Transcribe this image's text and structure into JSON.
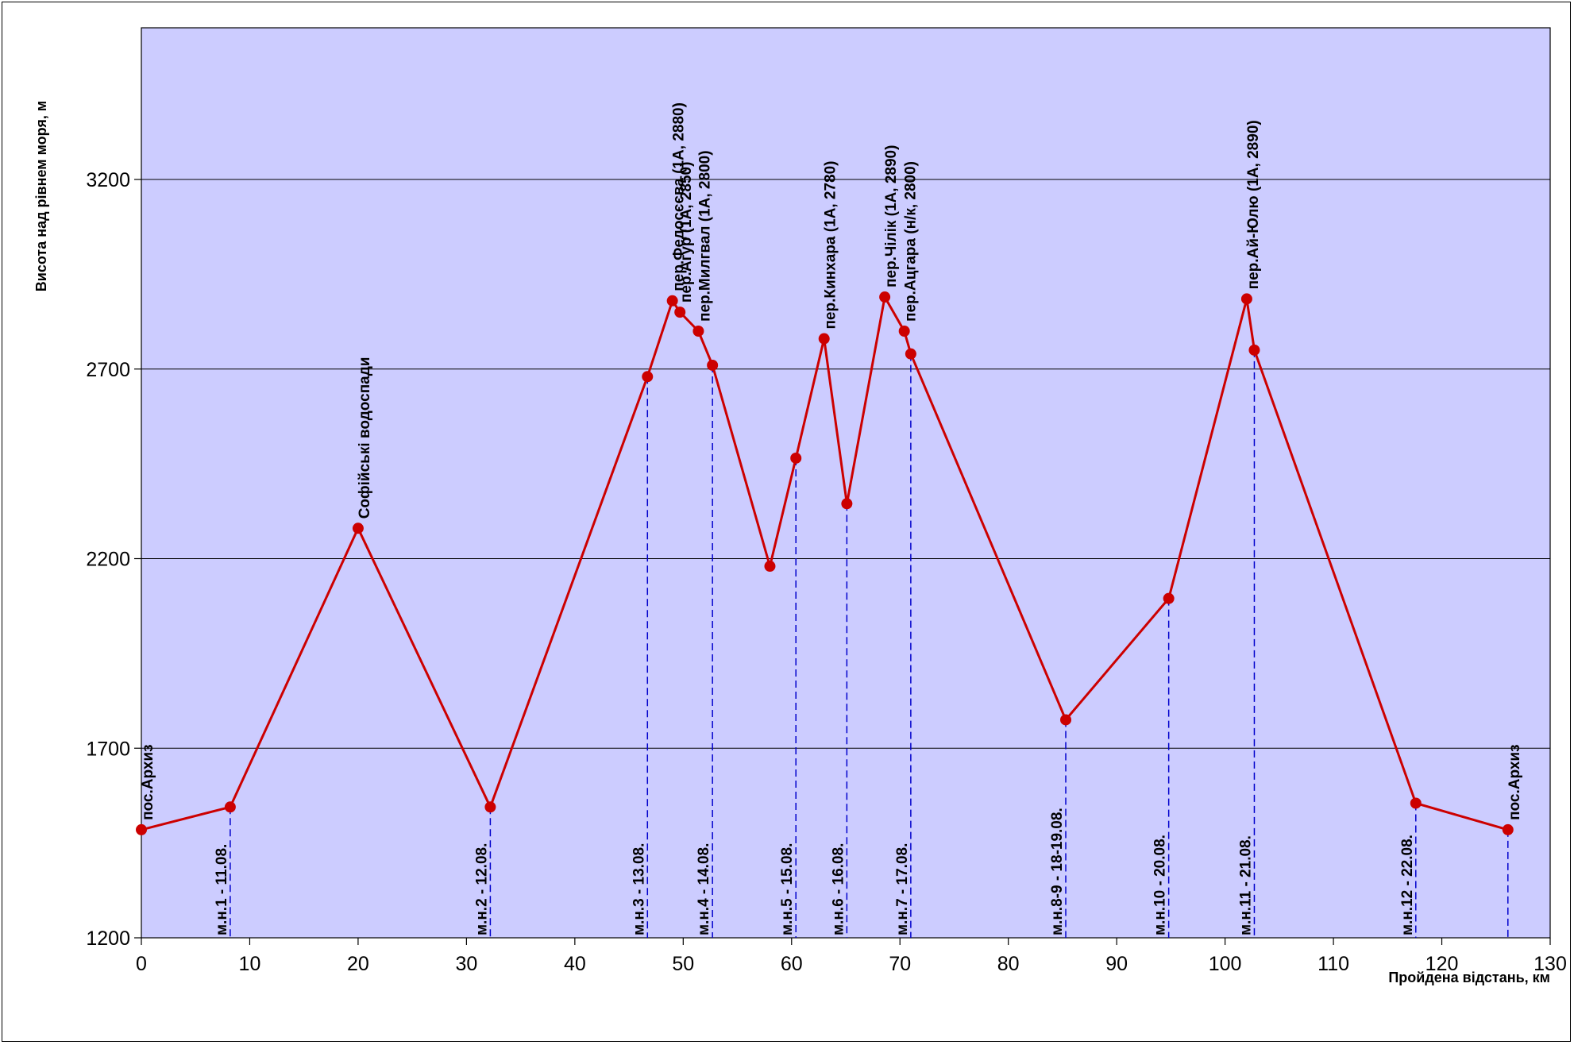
{
  "chart_data": {
    "type": "line",
    "title": "",
    "xlabel": "Пройдена відстань, км",
    "ylabel": "Висота над рівнем моря, м",
    "xlim": [
      0,
      130
    ],
    "ylim": [
      1200,
      3600
    ],
    "x_ticks": [
      0,
      10,
      20,
      30,
      40,
      50,
      60,
      70,
      80,
      90,
      100,
      110,
      120,
      130
    ],
    "y_ticks": [
      1200,
      1700,
      2200,
      2700,
      3200
    ],
    "grid": "horizontal",
    "colors": {
      "plot_bg": "#ccccff",
      "line": "#cc0000",
      "marker": "#cc0000",
      "drop_line": "#0000cc"
    },
    "series": [
      {
        "x": [
          0,
          8.2,
          20,
          32.2,
          46.7,
          49,
          49.7,
          51.4,
          52.7,
          58,
          60.4,
          63,
          65.1,
          68.6,
          70.4,
          71,
          85.3,
          94.8,
          102,
          102.7,
          117.6,
          126.1
        ],
        "y": [
          1485,
          1545,
          2280,
          1545,
          2680,
          2880,
          2850,
          2800,
          2710,
          2180,
          2465,
          2780,
          2345,
          2890,
          2800,
          2740,
          1775,
          2095,
          2885,
          2750,
          1555,
          1485
        ]
      }
    ],
    "point_labels": [
      {
        "x": 0,
        "y": 1485,
        "text": "пос.Архиз"
      },
      {
        "x": 20,
        "y": 2280,
        "text": "Софійські водоспади"
      },
      {
        "x": 49,
        "y": 2880,
        "text": "пер.Федосєєва (1А, 2880)"
      },
      {
        "x": 49.7,
        "y": 2850,
        "text": "пер.Агур (1А, 2850)"
      },
      {
        "x": 51.4,
        "y": 2800,
        "text": "пер.Милгвал (1А, 2800)"
      },
      {
        "x": 63,
        "y": 2780,
        "text": "пер.Кинхара (1А, 2780)"
      },
      {
        "x": 68.6,
        "y": 2890,
        "text": "пер.Чілік (1А, 2890)"
      },
      {
        "x": 70.4,
        "y": 2800,
        "text": "пер.Ацгара (н/к, 2800)"
      },
      {
        "x": 102,
        "y": 2885,
        "text": "пер.Ай-Юлю (1А, 2890)"
      },
      {
        "x": 126.1,
        "y": 1485,
        "text": "пос.Архиз"
      }
    ],
    "camps": [
      {
        "x": 8.2,
        "top": 1545,
        "text": "м.н.1 - 11.08."
      },
      {
        "x": 32.2,
        "top": 1545,
        "text": "м.н.2 - 12.08."
      },
      {
        "x": 46.7,
        "top": 2680,
        "text": "м.н.3 - 13.08."
      },
      {
        "x": 52.7,
        "top": 2710,
        "text": "м.н.4 - 14.08."
      },
      {
        "x": 60.4,
        "top": 2465,
        "text": "м.н.5 - 15.08."
      },
      {
        "x": 65.1,
        "top": 2345,
        "text": "м.н.6 - 16.08."
      },
      {
        "x": 71,
        "top": 2740,
        "text": "м.н.7 - 17.08."
      },
      {
        "x": 85.3,
        "top": 1775,
        "text": "м.н.8-9 - 18-19.08."
      },
      {
        "x": 94.8,
        "top": 2095,
        "text": "м.н.10 - 20.08."
      },
      {
        "x": 102.7,
        "top": 2750,
        "text": "м.н.11 - 21.08."
      },
      {
        "x": 117.6,
        "top": 1555,
        "text": "м.н.12 - 22.08."
      },
      {
        "x": 126.1,
        "top": 1485,
        "text": ""
      }
    ]
  }
}
